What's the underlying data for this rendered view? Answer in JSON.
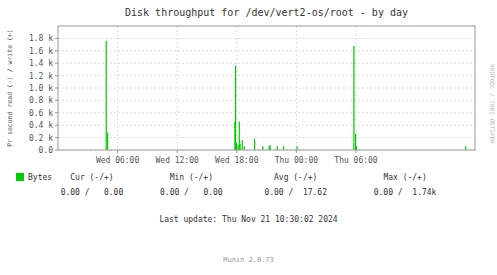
{
  "chart_data": {
    "type": "bar",
    "title": "Disk throughput for /dev/vert2-os/root - by day",
    "y_label": "Pr second read (-) / write (+)",
    "x": [
      233,
      240,
      855,
      858,
      862,
      870,
      876,
      880,
      890,
      900,
      950,
      990,
      1020,
      1025,
      1060,
      1090,
      1155,
      1430,
      1438,
      1442,
      1970
    ],
    "series": [
      {
        "name": "Bytes",
        "color": "#00cc00",
        "values": [
          1760,
          280,
          460,
          1360,
          120,
          80,
          460,
          100,
          160,
          60,
          180,
          60,
          60,
          80,
          60,
          60,
          60,
          1680,
          260,
          60,
          60
        ]
      }
    ],
    "xlim": [
      0,
      2015
    ],
    "xticks": [
      {
        "value": 288,
        "label": "Wed 06:00"
      },
      {
        "value": 576,
        "label": "Wed 12:00"
      },
      {
        "value": 864,
        "label": "Wed 18:00"
      },
      {
        "value": 1152,
        "label": "Thu 00:00"
      },
      {
        "value": 1440,
        "label": "Thu 06:00"
      }
    ],
    "ylim": [
      0,
      2000
    ],
    "yticks": [
      {
        "value": 0,
        "label": "0.0"
      },
      {
        "value": 200,
        "label": "0.2 k"
      },
      {
        "value": 400,
        "label": "0.4 k"
      },
      {
        "value": 600,
        "label": "0.6 k"
      },
      {
        "value": 800,
        "label": "0.8 k"
      },
      {
        "value": 1000,
        "label": "1.0 k"
      },
      {
        "value": 1200,
        "label": "1.2 k"
      },
      {
        "value": 1400,
        "label": "1.4 k"
      },
      {
        "value": 1600,
        "label": "1.6 k"
      },
      {
        "value": 1800,
        "label": "1.8 k"
      }
    ],
    "grid": true,
    "legend": "bottom",
    "annotations": [
      "Cur (-/+)",
      "Min (-/+)",
      "Avg (-/+)",
      "Max (-/+)",
      "0.00 /   0.00",
      "0.00 /   0.00",
      "0.00 /  17.62",
      "0.00 /  1.74k",
      "Last update: Thu Nov 21 10:30:02 2024",
      "Munin 2.0.73",
      "RRDTOOL / TOBI OETIKER"
    ]
  }
}
